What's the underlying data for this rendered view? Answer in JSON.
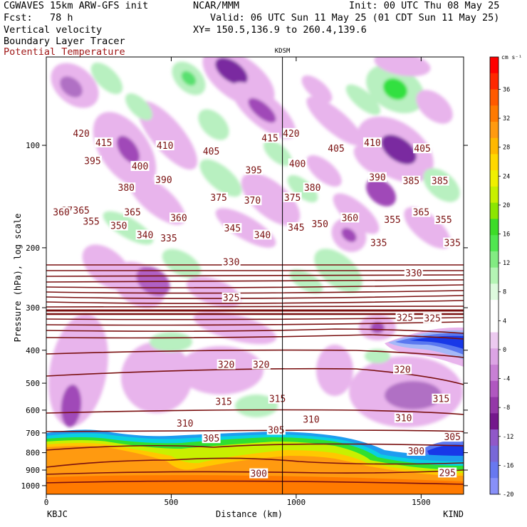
{
  "header": {
    "model": "CGWAVES 15km ARW-GFS init",
    "fcst": "Fcst:   78 h",
    "field1": "Vertical velocity",
    "field2": "Boundary Layer Tracer",
    "field3": "Potential Temperature",
    "org": "NCAR/MMM",
    "init": "Init: 00 UTC Thu 08 May 25",
    "valid": "Valid: 06 UTC Sun 11 May 25 (01 CDT Sun 11 May 25)",
    "xy": "XY= 150.5,136.9 to 260.4,139.6"
  },
  "colors": {
    "purple_dark": "#6a1a8c",
    "purple_mid": "#a04ab8",
    "purple_light": "#e8b4ec",
    "green_light": "#b8f0c0",
    "green_mid": "#58e070",
    "orange": "#ff9a10",
    "theta_line": "#7a1010"
  },
  "chart_data": {
    "type": "cross-section",
    "station_marker": "KDSM",
    "station_marker_km": 945,
    "xlabel": "Distance (km)",
    "ylabel": "Pressure (hPa), log scale",
    "x_ticks": [
      0,
      500,
      1000,
      1500
    ],
    "x_range": [
      0,
      1670
    ],
    "x_endpoints": {
      "left": "KBJC",
      "right": "KIND"
    },
    "y_ticks": [
      100,
      200,
      300,
      400,
      500,
      600,
      700,
      800,
      900,
      1000
    ],
    "y_range": [
      55,
      1060
    ],
    "colorbar": {
      "unit": "cm s⁻¹",
      "labels": [
        "36",
        "32",
        "28",
        "24",
        "20",
        "16",
        "12",
        "8",
        "4",
        "0",
        "-4",
        "-8",
        "-12",
        "-16",
        "-20"
      ],
      "colors": [
        "#ff0000",
        "#ff2800",
        "#ff5a00",
        "#ff7a00",
        "#ff9a10",
        "#ffb800",
        "#ffd800",
        "#f0f000",
        "#c8f000",
        "#8ce600",
        "#3cdc28",
        "#50e650",
        "#82ec82",
        "#b4f4b4",
        "#ddfadd",
        "#ffffff",
        "#ffffff",
        "#eccaf0",
        "#dca4e4",
        "#c880d4",
        "#b058c0",
        "#9438a8",
        "#74188c",
        "#9058c8",
        "#7868d8",
        "#6878f0",
        "#8890f8"
      ]
    },
    "theta_labels": [
      {
        "x": 140,
        "p": 92,
        "t": "420"
      },
      {
        "x": 230,
        "p": 98,
        "t": "415"
      },
      {
        "x": 475,
        "p": 100,
        "t": "410"
      },
      {
        "x": 660,
        "p": 104,
        "t": "405"
      },
      {
        "x": 895,
        "p": 95,
        "t": "415"
      },
      {
        "x": 980,
        "p": 92,
        "t": "420"
      },
      {
        "x": 1160,
        "p": 102,
        "t": "405"
      },
      {
        "x": 1305,
        "p": 98,
        "t": "410"
      },
      {
        "x": 1505,
        "p": 102,
        "t": "405"
      },
      {
        "x": 185,
        "p": 111,
        "t": "395"
      },
      {
        "x": 375,
        "p": 115,
        "t": "400"
      },
      {
        "x": 830,
        "p": 118,
        "t": "395"
      },
      {
        "x": 1005,
        "p": 113,
        "t": "400"
      },
      {
        "x": 470,
        "p": 126,
        "t": "390"
      },
      {
        "x": 320,
        "p": 133,
        "t": "380"
      },
      {
        "x": 1065,
        "p": 133,
        "t": "380"
      },
      {
        "x": 1325,
        "p": 124,
        "t": "390"
      },
      {
        "x": 1460,
        "p": 127,
        "t": "385"
      },
      {
        "x": 1575,
        "p": 127,
        "t": "385"
      },
      {
        "x": 690,
        "p": 142,
        "t": "375"
      },
      {
        "x": 825,
        "p": 145,
        "t": "370"
      },
      {
        "x": 985,
        "p": 142,
        "t": "375"
      },
      {
        "x": 95,
        "p": 155,
        "t": "370"
      },
      {
        "x": 60,
        "p": 157,
        "t": "360"
      },
      {
        "x": 140,
        "p": 155,
        "t": "365"
      },
      {
        "x": 345,
        "p": 157,
        "t": "365"
      },
      {
        "x": 530,
        "p": 163,
        "t": "360"
      },
      {
        "x": 1215,
        "p": 163,
        "t": "360"
      },
      {
        "x": 1385,
        "p": 165,
        "t": "355"
      },
      {
        "x": 1500,
        "p": 157,
        "t": "365"
      },
      {
        "x": 1590,
        "p": 165,
        "t": "355"
      },
      {
        "x": 180,
        "p": 167,
        "t": "355"
      },
      {
        "x": 290,
        "p": 172,
        "t": "350"
      },
      {
        "x": 745,
        "p": 175,
        "t": "345"
      },
      {
        "x": 1000,
        "p": 174,
        "t": "345"
      },
      {
        "x": 1095,
        "p": 170,
        "t": "350"
      },
      {
        "x": 490,
        "p": 187,
        "t": "335"
      },
      {
        "x": 395,
        "p": 183,
        "t": "340"
      },
      {
        "x": 865,
        "p": 183,
        "t": "340"
      },
      {
        "x": 1330,
        "p": 193,
        "t": "335"
      },
      {
        "x": 1625,
        "p": 193,
        "t": "335"
      },
      {
        "x": 740,
        "p": 220,
        "t": "330"
      },
      {
        "x": 1470,
        "p": 237,
        "t": "330"
      },
      {
        "x": 740,
        "p": 280,
        "t": "325"
      },
      {
        "x": 1435,
        "p": 320,
        "t": "325"
      },
      {
        "x": 1545,
        "p": 322,
        "t": "325"
      },
      {
        "x": 720,
        "p": 440,
        "t": "320"
      },
      {
        "x": 860,
        "p": 440,
        "t": "320"
      },
      {
        "x": 1425,
        "p": 455,
        "t": "320"
      },
      {
        "x": 710,
        "p": 565,
        "t": "315"
      },
      {
        "x": 925,
        "p": 555,
        "t": "315"
      },
      {
        "x": 1580,
        "p": 555,
        "t": "315"
      },
      {
        "x": 555,
        "p": 655,
        "t": "310"
      },
      {
        "x": 1060,
        "p": 638,
        "t": "310"
      },
      {
        "x": 1430,
        "p": 632,
        "t": "310"
      },
      {
        "x": 660,
        "p": 725,
        "t": "305"
      },
      {
        "x": 920,
        "p": 685,
        "t": "305"
      },
      {
        "x": 1625,
        "p": 718,
        "t": "305"
      },
      {
        "x": 850,
        "p": 920,
        "t": "300"
      },
      {
        "x": 1480,
        "p": 790,
        "t": "300"
      },
      {
        "x": 1605,
        "p": 915,
        "t": "295"
      }
    ]
  }
}
